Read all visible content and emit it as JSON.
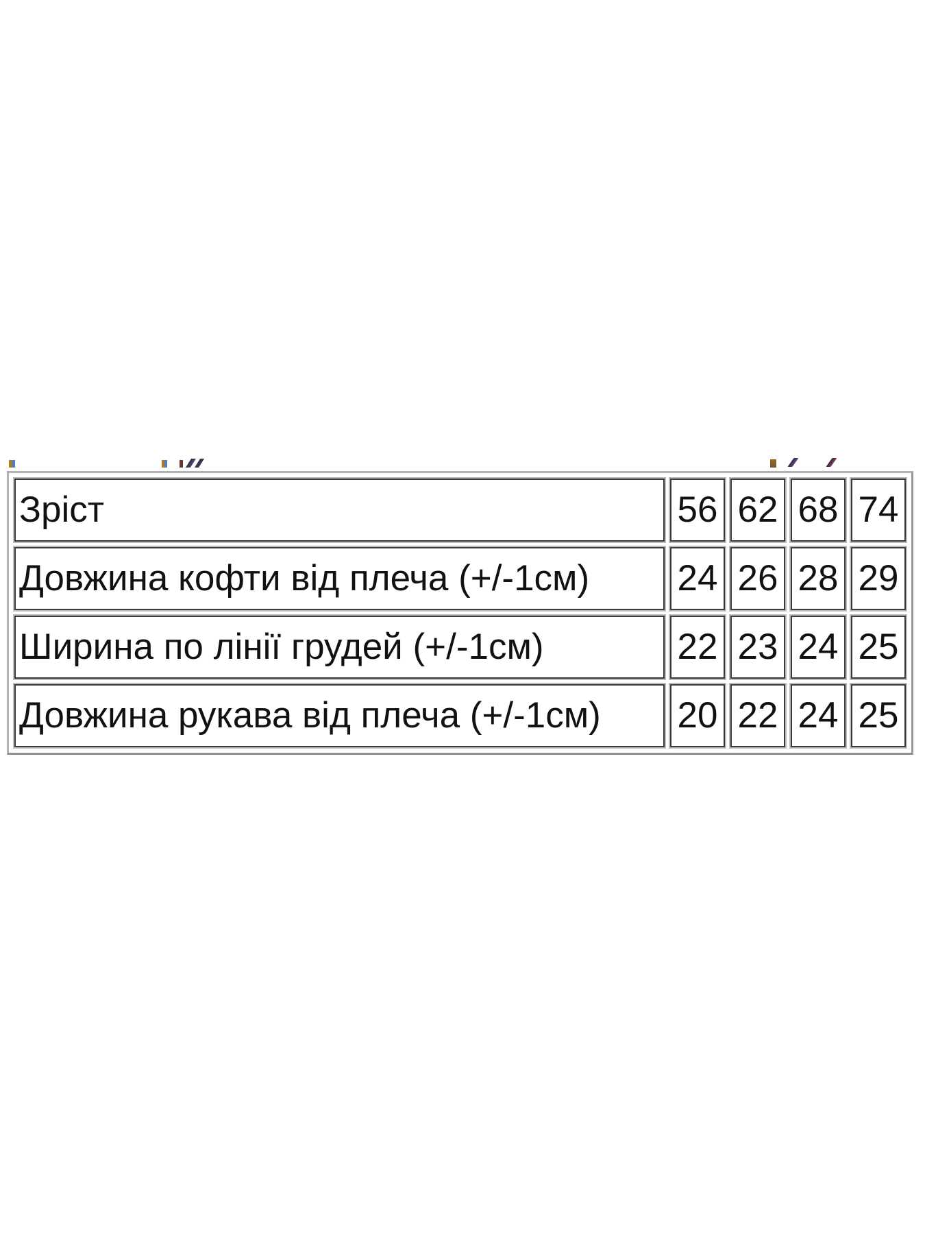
{
  "page": {
    "background_color": "#ffffff",
    "text_color": "#111111"
  },
  "size_table": {
    "rows": [
      {
        "label": "Зріст",
        "values": [
          "56",
          "62",
          "68",
          "74"
        ]
      },
      {
        "label": "Довжина кофти від плеча (+/-1см)",
        "values": [
          "24",
          "26",
          "28",
          "29"
        ]
      },
      {
        "label": "Ширина по лінії грудей (+/-1см)",
        "values": [
          "22",
          "23",
          "24",
          "25"
        ]
      },
      {
        "label": "Довжина рукава від плеча (+/-1см)",
        "values": [
          "20",
          "22",
          "24",
          "25"
        ]
      }
    ],
    "colors": {
      "outer_border": "#9a9a9a",
      "cell_border": "#3a3a3a",
      "cell_halo": "#bdbdbd"
    }
  },
  "chart_data": {
    "type": "table",
    "title": "",
    "columns": [
      "",
      "56",
      "62",
      "68",
      "74"
    ],
    "rows": [
      [
        "Зріст",
        "56",
        "62",
        "68",
        "74"
      ],
      [
        "Довжина кофти від плеча (+/-1см)",
        "24",
        "26",
        "28",
        "29"
      ],
      [
        "Ширина по лінії грудей (+/-1см)",
        "22",
        "23",
        "24",
        "25"
      ],
      [
        "Довжина рукава від плеча (+/-1см)",
        "20",
        "22",
        "24",
        "25"
      ]
    ]
  }
}
